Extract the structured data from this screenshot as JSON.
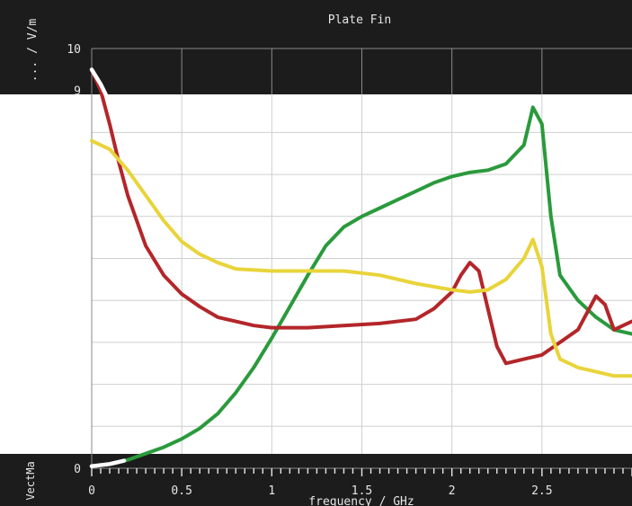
{
  "chart_data": {
    "type": "line",
    "title": "Plate Fin",
    "xlabel": "frequency / GHz",
    "ylabel": "... / V/m",
    "side_label": "VectMa",
    "xlim": [
      0,
      3.0
    ],
    "ylim": [
      0,
      10
    ],
    "x_ticks": [
      0,
      0.5,
      1,
      1.5,
      2,
      2.5
    ],
    "x_tick_labels": [
      "0",
      "0.5",
      "1",
      "1.5",
      "2",
      "2.5"
    ],
    "y_ticks": [
      0,
      9,
      10
    ],
    "y_tick_labels": [
      "0",
      "9",
      "10"
    ],
    "grid": true,
    "colors": {
      "frame": "#1c1c1c",
      "text": "#e6e6e6",
      "grid": "#cfcfcf",
      "grid_dark": "#8a8a8a",
      "white_trace": "#ffffff"
    },
    "series": [
      {
        "color": "#2a9a3c",
        "x": [
          0,
          0.1,
          0.2,
          0.3,
          0.4,
          0.5,
          0.6,
          0.7,
          0.8,
          0.9,
          1.0,
          1.1,
          1.2,
          1.3,
          1.4,
          1.5,
          1.6,
          1.7,
          1.8,
          1.9,
          2.0,
          2.1,
          2.2,
          2.3,
          2.4,
          2.45,
          2.5,
          2.55,
          2.6,
          2.7,
          2.8,
          2.9,
          3.0
        ],
        "y": [
          0.05,
          0.1,
          0.2,
          0.35,
          0.5,
          0.7,
          0.95,
          1.3,
          1.8,
          2.4,
          3.1,
          3.85,
          4.6,
          5.3,
          5.75,
          6.0,
          6.2,
          6.4,
          6.6,
          6.8,
          6.95,
          7.05,
          7.1,
          7.25,
          7.7,
          8.6,
          8.2,
          6.0,
          4.6,
          4.0,
          3.6,
          3.3,
          3.2
        ]
      },
      {
        "color": "#b3262a",
        "x": [
          0,
          0.05,
          0.1,
          0.15,
          0.2,
          0.3,
          0.4,
          0.5,
          0.6,
          0.7,
          0.8,
          0.9,
          1.0,
          1.2,
          1.4,
          1.6,
          1.8,
          1.9,
          2.0,
          2.05,
          2.1,
          2.15,
          2.2,
          2.25,
          2.3,
          2.4,
          2.5,
          2.6,
          2.7,
          2.8,
          2.85,
          2.9,
          3.0
        ],
        "y": [
          9.5,
          9.0,
          8.2,
          7.3,
          6.5,
          5.3,
          4.6,
          4.15,
          3.85,
          3.6,
          3.5,
          3.4,
          3.35,
          3.35,
          3.4,
          3.45,
          3.55,
          3.8,
          4.2,
          4.6,
          4.9,
          4.7,
          3.8,
          2.9,
          2.5,
          2.6,
          2.7,
          3.0,
          3.3,
          4.1,
          3.9,
          3.3,
          3.5
        ]
      },
      {
        "color": "#e8d43a",
        "x": [
          0,
          0.1,
          0.2,
          0.3,
          0.4,
          0.5,
          0.6,
          0.7,
          0.8,
          1.0,
          1.2,
          1.4,
          1.6,
          1.8,
          2.0,
          2.1,
          2.2,
          2.3,
          2.4,
          2.45,
          2.5,
          2.55,
          2.6,
          2.7,
          2.8,
          2.9,
          3.0
        ],
        "y": [
          7.8,
          7.6,
          7.1,
          6.5,
          5.9,
          5.4,
          5.1,
          4.9,
          4.75,
          4.7,
          4.7,
          4.7,
          4.6,
          4.4,
          4.25,
          4.2,
          4.25,
          4.5,
          5.0,
          5.45,
          4.8,
          3.2,
          2.6,
          2.4,
          2.3,
          2.2,
          2.2
        ]
      }
    ]
  }
}
